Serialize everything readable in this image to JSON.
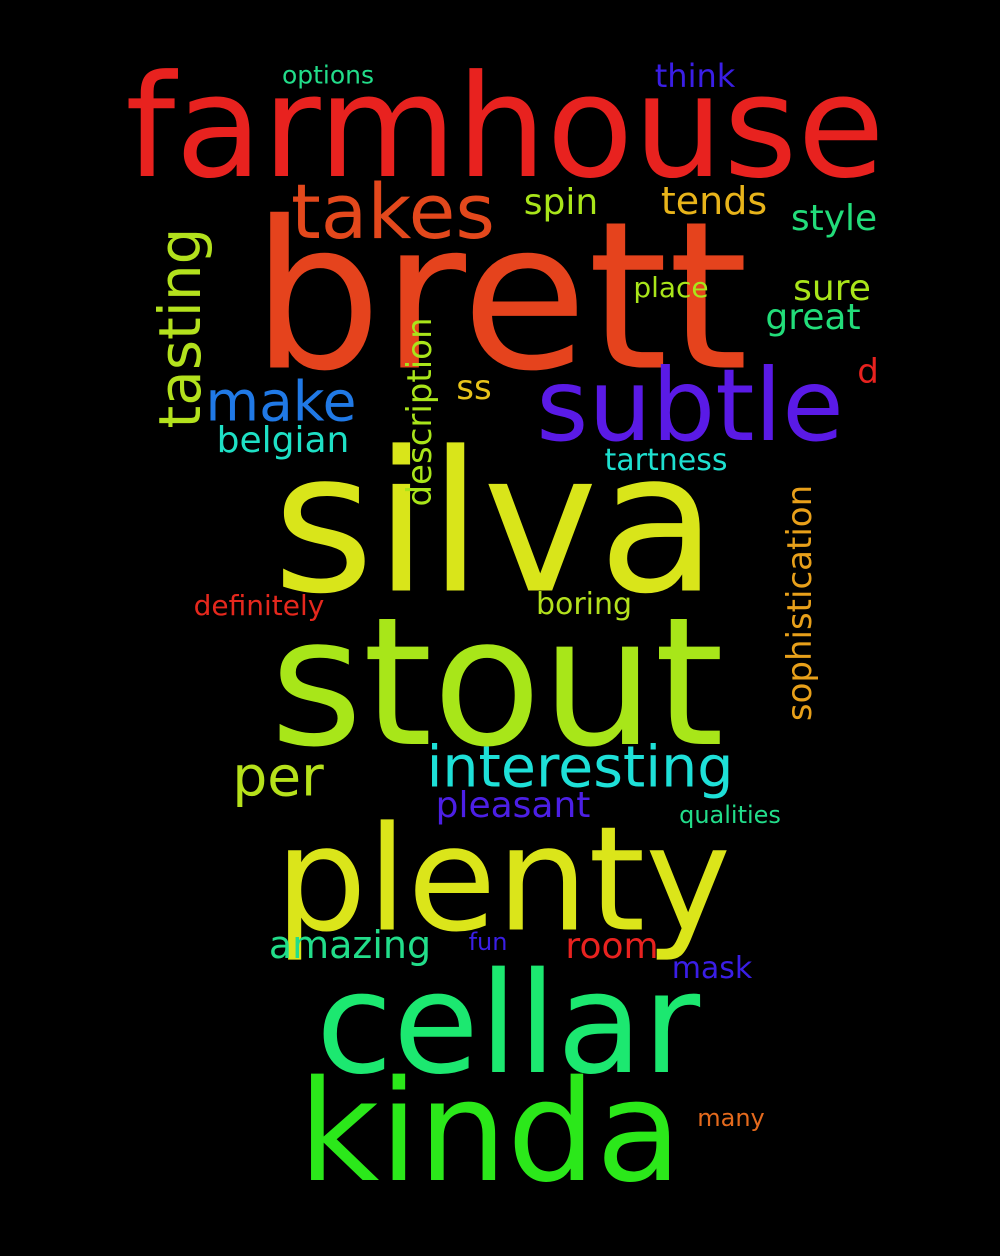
{
  "words": {
    "farmhouse": {
      "text": "farmhouse",
      "color": "#e8221f"
    },
    "brett": {
      "text": "brett",
      "color": "#e5431d"
    },
    "silva": {
      "text": "silva",
      "color": "#d9e51a"
    },
    "stout": {
      "text": "stout",
      "color": "#a8e619"
    },
    "plenty": {
      "text": "plenty",
      "color": "#dbe51a"
    },
    "cellar": {
      "text": "cellar",
      "color": "#1ce870"
    },
    "kinda": {
      "text": "kinda",
      "color": "#2be81a"
    },
    "subtle": {
      "text": "subtle",
      "color": "#5a1ae6"
    },
    "takes": {
      "text": "takes",
      "color": "#e3481c"
    },
    "tasting": {
      "text": "tasting",
      "color": "#b3e11d"
    },
    "make": {
      "text": "make",
      "color": "#2079e6"
    },
    "interesting": {
      "text": "interesting",
      "color": "#1ee0d8"
    },
    "per": {
      "text": "per",
      "color": "#b6e11b"
    },
    "description": {
      "text": "description",
      "color": "#a9e51a"
    },
    "sophistication": {
      "text": "sophistication",
      "color": "#e8a01a"
    },
    "pleasant": {
      "text": "pleasant",
      "color": "#4c1fe5"
    },
    "amazing": {
      "text": "amazing",
      "color": "#22dd8a"
    },
    "room": {
      "text": "room",
      "color": "#e8221f"
    },
    "mask": {
      "text": "mask",
      "color": "#3a1ee6"
    },
    "fun": {
      "text": "fun",
      "color": "#3a1ee6"
    },
    "qualities": {
      "text": "qualities",
      "color": "#22dd8a"
    },
    "many": {
      "text": "many",
      "color": "#e56a1d"
    },
    "boring": {
      "text": "boring",
      "color": "#b3e11d"
    },
    "definitely": {
      "text": "definitely",
      "color": "#e5281d"
    },
    "tartness": {
      "text": "tartness",
      "color": "#1ee0d0"
    },
    "belgian": {
      "text": "belgian",
      "color": "#1ee0c5"
    },
    "ss": {
      "text": "ss",
      "color": "#e8c31a"
    },
    "d": {
      "text": "d",
      "color": "#e8221f"
    },
    "great": {
      "text": "great",
      "color": "#22dd7a"
    },
    "sure": {
      "text": "sure",
      "color": "#a9e51a"
    },
    "place": {
      "text": "place",
      "color": "#a9e51a"
    },
    "style": {
      "text": "style",
      "color": "#22dd7a"
    },
    "tends": {
      "text": "tends",
      "color": "#e8b41a"
    },
    "spin": {
      "text": "spin",
      "color": "#a9e51a"
    },
    "think": {
      "text": "think",
      "color": "#3a1ee6"
    },
    "options": {
      "text": "options",
      "color": "#22dd8a"
    }
  }
}
